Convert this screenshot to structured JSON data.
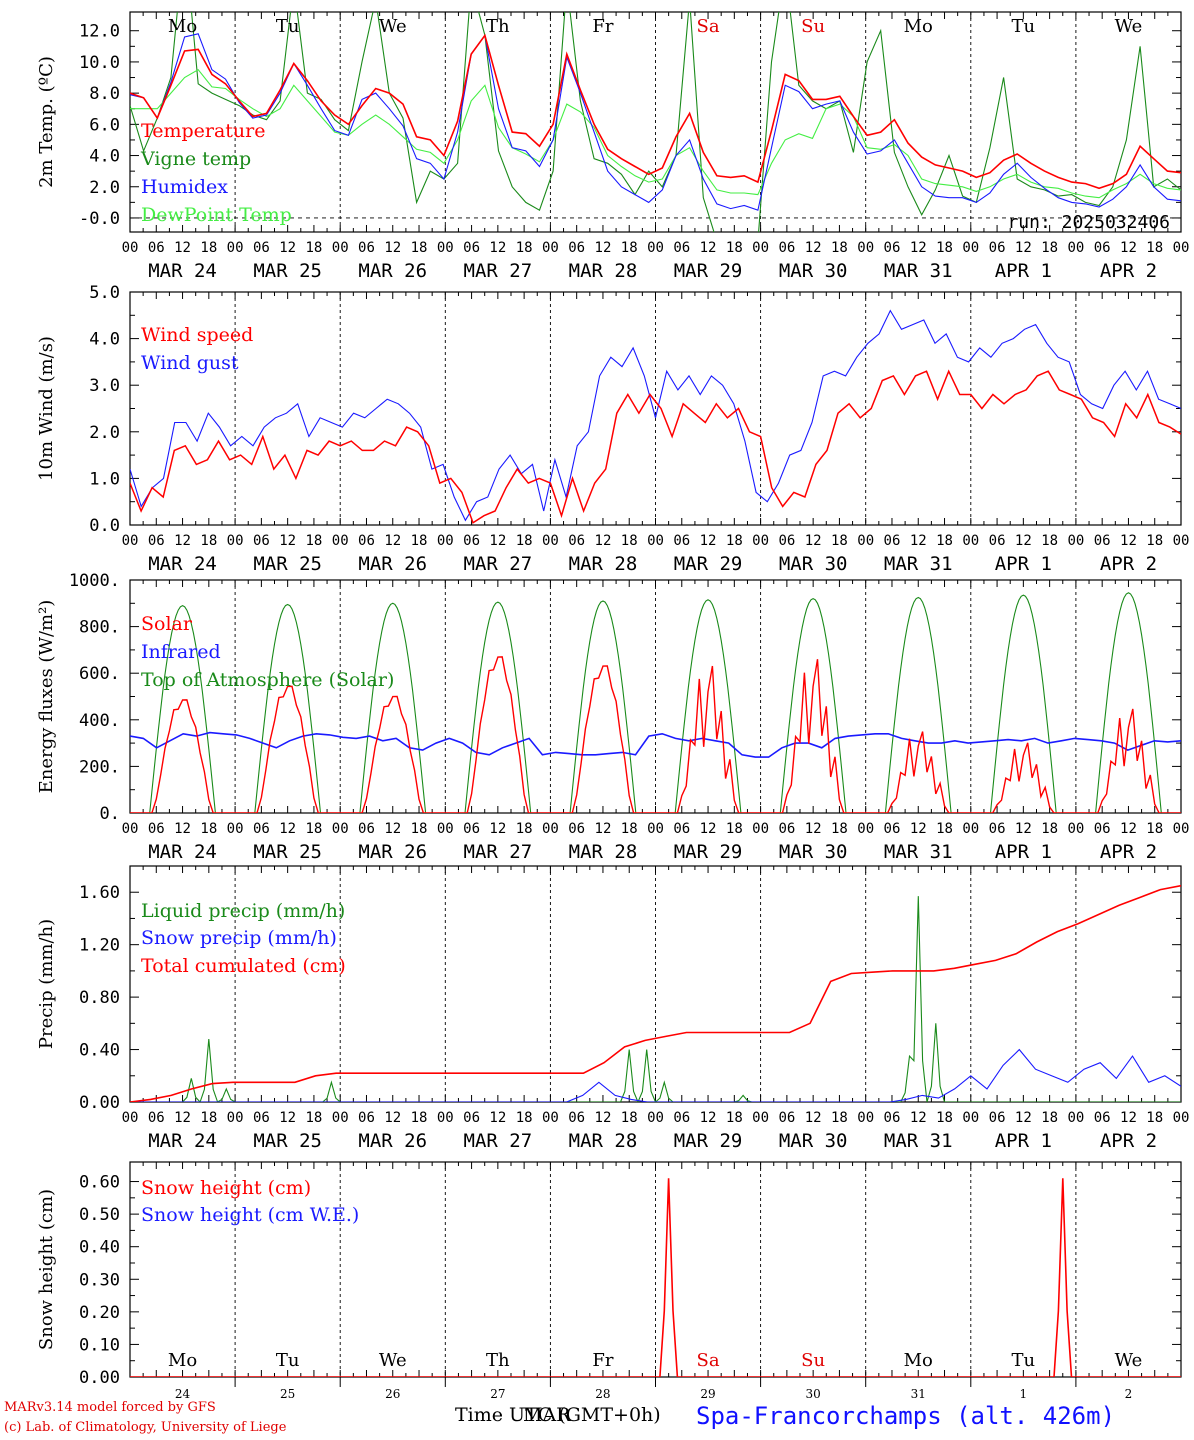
{
  "chart_data": [
    {
      "type": "line",
      "ylabel": "2m Temp. (ºC)",
      "ylim": [
        -0.9,
        13.2
      ],
      "yticks": [
        "-0.0",
        "2.0",
        "4.0",
        "6.0",
        "8.0",
        "10.0",
        "12.0"
      ],
      "run_label": "run: 2025032406",
      "day_names": [
        {
          "label": "Mo",
          "color": "#000000"
        },
        {
          "label": "Tu",
          "color": "#000000"
        },
        {
          "label": "We",
          "color": "#000000"
        },
        {
          "label": "Th",
          "color": "#000000"
        },
        {
          "label": "Fr",
          "color": "#000000"
        },
        {
          "label": "Sa",
          "color": "#e00000"
        },
        {
          "label": "Su",
          "color": "#e00000"
        },
        {
          "label": "Mo",
          "color": "#000000"
        },
        {
          "label": "Tu",
          "color": "#000000"
        },
        {
          "label": "We",
          "color": "#000000"
        }
      ],
      "series": [
        {
          "name": "Temperature",
          "color": "#ff0000",
          "values": [
            8.0,
            7.7,
            6.4,
            8.5,
            10.7,
            10.8,
            9.2,
            8.6,
            7.5,
            6.5,
            6.7,
            8.2,
            9.9,
            8.8,
            7.5,
            6.6,
            6.0,
            7.2,
            8.3,
            8.0,
            7.3,
            5.2,
            5.0,
            4.0,
            6.2,
            10.5,
            11.7,
            8.5,
            5.5,
            5.4,
            4.6,
            6.0,
            10.5,
            8.2,
            6.0,
            4.4,
            3.8,
            3.3,
            2.8,
            3.2,
            5.2,
            6.7,
            4.2,
            2.7,
            2.6,
            2.7,
            2.3,
            5.6,
            9.2,
            8.8,
            7.6,
            7.6,
            7.8,
            6.5,
            5.3,
            5.5,
            6.3,
            4.8,
            3.9,
            3.4,
            3.2,
            3.0,
            2.6,
            2.9,
            3.7,
            4.1,
            3.5,
            3.0,
            2.6,
            2.3,
            2.2,
            1.9,
            2.2,
            2.8,
            4.6,
            3.8,
            3.0,
            2.9
          ]
        },
        {
          "name": "Vigne temp",
          "color": "#1a8a1a",
          "values": [
            7.2,
            4.3,
            6.4,
            9.0,
            18.0,
            8.6,
            8.0,
            7.6,
            7.2,
            6.6,
            6.3,
            7.5,
            15.0,
            8.0,
            7.6,
            6.3,
            5.6,
            10.0,
            14.0,
            8.0,
            6.4,
            1.0,
            3.0,
            2.5,
            3.5,
            15.0,
            11.7,
            4.3,
            2.0,
            1.0,
            0.5,
            3.0,
            15.0,
            7.5,
            3.8,
            3.5,
            2.8,
            1.5,
            3.0,
            2.0,
            4.0,
            14.0,
            1.3,
            -1.5,
            -2.0,
            -1.0,
            -1.5,
            10.0,
            16.0,
            8.5,
            7.5,
            7.0,
            7.5,
            4.2,
            10.0,
            12.0,
            4.2,
            2.0,
            0.2,
            1.8,
            4.0,
            1.4,
            1.0,
            4.5,
            9.0,
            2.5,
            2.0,
            1.8,
            1.4,
            1.5,
            1.0,
            0.8,
            2.0,
            5.0,
            11.0,
            2.0,
            2.5,
            1.8
          ]
        },
        {
          "name": "Humidex",
          "color": "#1a1aff",
          "values": [
            7.9,
            7.7,
            6.4,
            8.7,
            11.6,
            11.8,
            9.5,
            8.9,
            7.4,
            6.4,
            6.6,
            8.0,
            9.9,
            8.5,
            7.0,
            5.6,
            5.3,
            7.6,
            8.0,
            7.0,
            5.9,
            3.8,
            3.5,
            2.5,
            5.5,
            10.5,
            11.7,
            7.0,
            4.5,
            4.3,
            3.3,
            5.0,
            10.3,
            8.0,
            5.5,
            3.0,
            2.0,
            1.5,
            1.0,
            1.8,
            4.0,
            5.0,
            2.5,
            0.9,
            0.6,
            0.8,
            0.5,
            4.5,
            8.5,
            8.1,
            7.0,
            7.3,
            7.5,
            5.5,
            4.1,
            4.3,
            5.0,
            3.5,
            2.0,
            1.4,
            1.3,
            1.3,
            1.0,
            1.6,
            2.8,
            3.5,
            2.6,
            1.9,
            1.3,
            1.0,
            0.9,
            0.7,
            1.2,
            2.0,
            3.4,
            2.0,
            1.2,
            1.1
          ]
        },
        {
          "name": "DewPoint Temp",
          "color": "#44ee44",
          "values": [
            7.0,
            7.0,
            7.0,
            8.0,
            9.0,
            9.5,
            8.4,
            8.3,
            7.6,
            7.0,
            6.5,
            7.0,
            8.5,
            7.5,
            6.5,
            5.5,
            5.3,
            6.0,
            6.6,
            6.0,
            5.2,
            4.4,
            4.2,
            3.5,
            5.0,
            7.5,
            8.5,
            5.8,
            4.5,
            4.1,
            3.6,
            5.0,
            7.3,
            6.8,
            5.8,
            4.0,
            3.3,
            2.7,
            2.3,
            2.5,
            4.0,
            4.5,
            3.0,
            1.8,
            1.6,
            1.6,
            1.5,
            3.5,
            5.0,
            5.4,
            5.1,
            7.0,
            7.3,
            6.5,
            4.5,
            4.4,
            4.7,
            4.0,
            2.5,
            2.2,
            2.1,
            2.0,
            1.7,
            2.0,
            2.5,
            2.8,
            2.3,
            2.0,
            1.9,
            1.6,
            1.4,
            1.3,
            1.8,
            2.2,
            2.8,
            2.2,
            1.9,
            1.8
          ]
        }
      ]
    },
    {
      "type": "line",
      "ylabel": "10m Wind (m/s)",
      "ylim": [
        0,
        5
      ],
      "yticks": [
        "0.0",
        "1.0",
        "2.0",
        "3.0",
        "4.0",
        "5.0"
      ],
      "series": [
        {
          "name": "Wind speed",
          "color": "#ff0000",
          "values": [
            0.9,
            0.3,
            0.8,
            0.6,
            1.6,
            1.7,
            1.3,
            1.4,
            1.8,
            1.4,
            1.5,
            1.3,
            1.9,
            1.2,
            1.5,
            1.0,
            1.6,
            1.5,
            1.8,
            1.7,
            1.8,
            1.6,
            1.6,
            1.8,
            1.7,
            2.1,
            2.0,
            1.7,
            0.9,
            1.0,
            0.7,
            0.05,
            0.2,
            0.3,
            0.8,
            1.2,
            0.9,
            1.0,
            0.9,
            0.2,
            1.0,
            0.3,
            0.9,
            1.2,
            2.4,
            2.8,
            2.4,
            2.8,
            2.5,
            1.9,
            2.6,
            2.4,
            2.2,
            2.6,
            2.3,
            2.5,
            2.0,
            1.9,
            0.8,
            0.4,
            0.7,
            0.6,
            1.3,
            1.6,
            2.4,
            2.6,
            2.3,
            2.5,
            3.1,
            3.2,
            2.8,
            3.2,
            3.3,
            2.7,
            3.3,
            2.8,
            2.8,
            2.5,
            2.8,
            2.6,
            2.8,
            2.9,
            3.2,
            3.3,
            2.9,
            2.8,
            2.7,
            2.3,
            2.2,
            1.9,
            2.6,
            2.3,
            2.8,
            2.2,
            2.1,
            1.95
          ]
        },
        {
          "name": "Wind gust",
          "color": "#1a1aff",
          "values": [
            1.2,
            0.4,
            0.8,
            1.0,
            2.2,
            2.2,
            1.8,
            2.4,
            2.1,
            1.7,
            1.9,
            1.7,
            2.1,
            2.3,
            2.4,
            2.6,
            1.9,
            2.3,
            2.2,
            2.1,
            2.4,
            2.3,
            2.5,
            2.7,
            2.6,
            2.4,
            2.1,
            1.2,
            1.3,
            0.6,
            0.1,
            0.5,
            0.6,
            1.2,
            1.5,
            1.1,
            1.3,
            0.3,
            1.4,
            0.6,
            1.7,
            2.0,
            3.2,
            3.6,
            3.4,
            3.8,
            3.2,
            2.3,
            3.3,
            2.9,
            3.2,
            2.8,
            3.2,
            3.0,
            2.6,
            1.8,
            0.7,
            0.5,
            0.9,
            1.5,
            1.6,
            2.2,
            3.2,
            3.3,
            3.2,
            3.6,
            3.9,
            4.1,
            4.6,
            4.2,
            4.3,
            4.4,
            3.9,
            4.1,
            3.6,
            3.5,
            3.8,
            3.6,
            3.9,
            4.0,
            4.2,
            4.3,
            3.9,
            3.6,
            3.5,
            2.8,
            2.6,
            2.5,
            3.0,
            3.3,
            2.9,
            3.3,
            2.7,
            2.6,
            2.5
          ]
        }
      ]
    },
    {
      "type": "line",
      "ylabel": "Energy fluxes (W/m²)",
      "ylim": [
        0,
        1000
      ],
      "yticks": [
        "0.",
        "200.",
        "400.",
        "600.",
        "800.",
        "1000."
      ],
      "series": [
        {
          "name": "Solar",
          "color": "#ff0000",
          "peaks": [
            500,
            560,
            515,
            690,
            650,
            650,
            680,
            360,
            310,
            460
          ]
        },
        {
          "name": "Infrared",
          "color": "#1a1aff",
          "values": [
            330,
            320,
            280,
            310,
            340,
            330,
            345,
            340,
            335,
            320,
            300,
            280,
            310,
            330,
            340,
            335,
            325,
            320,
            330,
            310,
            320,
            280,
            270,
            300,
            320,
            300,
            260,
            250,
            280,
            300,
            320,
            250,
            260,
            255,
            250,
            250,
            255,
            260,
            250,
            330,
            340,
            320,
            310,
            320,
            310,
            300,
            250,
            240,
            240,
            280,
            300,
            300,
            280,
            320,
            330,
            335,
            340,
            340,
            320,
            310,
            300,
            300,
            310,
            300,
            305,
            310,
            315,
            310,
            320,
            300,
            310,
            320,
            315,
            310,
            300,
            270,
            290,
            310,
            305,
            310
          ]
        },
        {
          "name": "Top of Atmosphere (Solar)",
          "color": "#1a8a1a",
          "peaks": [
            890,
            895,
            900,
            905,
            910,
            915,
            920,
            925,
            935,
            945
          ]
        }
      ]
    },
    {
      "type": "line",
      "ylabel": "Precip (mm/h)",
      "ylim": [
        0,
        1.8
      ],
      "yticks": [
        "0.00",
        "0.40",
        "0.80",
        "1.20",
        "1.60"
      ],
      "series": [
        {
          "name": "Liquid precip (mm/h)",
          "color": "#1a8a1a",
          "events": [
            [
              14,
              0.18
            ],
            [
              18,
              0.48
            ],
            [
              22,
              0.1
            ],
            [
              46,
              0.15
            ],
            [
              114,
              0.4
            ],
            [
              118,
              0.4
            ],
            [
              122,
              0.15
            ],
            [
              140,
              0.05
            ],
            [
              178,
              0.35
            ],
            [
              180,
              1.57
            ],
            [
              184,
              0.6
            ]
          ]
        },
        {
          "name": "Snow precip (mm/h)",
          "color": "#1a1aff",
          "values": [
            0,
            0,
            0,
            0,
            0,
            0,
            0,
            0,
            0,
            0,
            0,
            0,
            0,
            0,
            0,
            0,
            0,
            0,
            0,
            0,
            0,
            0,
            0,
            0,
            0,
            0,
            0,
            0,
            0.05,
            0.15,
            0.05,
            0.02,
            0,
            0,
            0,
            0,
            0,
            0,
            0,
            0,
            0,
            0,
            0,
            0,
            0,
            0,
            0,
            0,
            0.02,
            0.05,
            0.03,
            0.1,
            0.2,
            0.1,
            0.28,
            0.4,
            0.25,
            0.2,
            0.15,
            0.25,
            0.3,
            0.18,
            0.35,
            0.15,
            0.2,
            0.12
          ]
        },
        {
          "name": "Total cumulated (cm)",
          "color": "#ff0000",
          "values": [
            0,
            0.02,
            0.05,
            0.1,
            0.14,
            0.15,
            0.15,
            0.15,
            0.15,
            0.2,
            0.22,
            0.22,
            0.22,
            0.22,
            0.22,
            0.22,
            0.22,
            0.22,
            0.22,
            0.22,
            0.22,
            0.22,
            0.22,
            0.3,
            0.42,
            0.47,
            0.5,
            0.53,
            0.53,
            0.53,
            0.53,
            0.53,
            0.53,
            0.6,
            0.92,
            0.98,
            0.99,
            1.0,
            1.0,
            1.0,
            1.02,
            1.05,
            1.08,
            1.13,
            1.22,
            1.3,
            1.36,
            1.43,
            1.5,
            1.56,
            1.62,
            1.65
          ]
        }
      ]
    },
    {
      "type": "line",
      "ylabel": "Snow height (cm)",
      "ylim": [
        0,
        0.66
      ],
      "yticks": [
        "0.00",
        "0.10",
        "0.20",
        "0.30",
        "0.40",
        "0.50",
        "0.60"
      ],
      "series": [
        {
          "name": "Snow height (cm)",
          "color": "#ff0000",
          "spikes": [
            [
              123,
              0.61
            ],
            [
              213,
              0.61
            ]
          ]
        },
        {
          "name": "Snow height (cm W.E.)",
          "color": "#1a1aff",
          "values": [
            0,
            0
          ]
        }
      ],
      "day_names": [
        {
          "label": "Mo",
          "color": "#000000"
        },
        {
          "label": "Tu",
          "color": "#000000"
        },
        {
          "label": "We",
          "color": "#000000"
        },
        {
          "label": "Th",
          "color": "#000000"
        },
        {
          "label": "Fr",
          "color": "#000000"
        },
        {
          "label": "Sa",
          "color": "#e00000"
        },
        {
          "label": "Su",
          "color": "#e00000"
        },
        {
          "label": "Mo",
          "color": "#000000"
        },
        {
          "label": "Tu",
          "color": "#000000"
        },
        {
          "label": "We",
          "color": "#000000"
        }
      ],
      "day_numbers": [
        "24",
        "25",
        "26",
        "27",
        "28",
        "29",
        "30",
        "31",
        "1",
        "2"
      ]
    }
  ],
  "x_axis": {
    "hour_ticks": [
      "00",
      "06",
      "12",
      "18"
    ],
    "day_labels": [
      "MAR 24",
      "MAR 25",
      "MAR 26",
      "MAR 27",
      "MAR 28",
      "MAR 29",
      "MAR 30",
      "MAR 31",
      "APR  1",
      "APR  2"
    ],
    "final_tick": "00"
  },
  "footer": {
    "credit_line1": "MARv3.14 model forced by GFS",
    "credit_line2": "(c) Lab. of Climatology, University of Liege",
    "xlabel": "Time UTC (GMT+0h)",
    "xlabel_overprint": "MAR",
    "station": "Spa-Francorchamps (alt. 426m)"
  }
}
